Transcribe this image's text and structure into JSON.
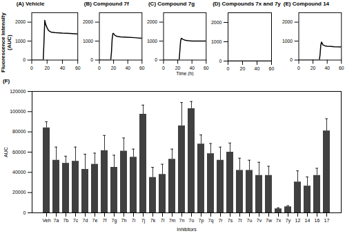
{
  "chart_data": [
    {
      "type": "line",
      "title": "(A) Vehicle",
      "ylabel": "Fluorescence Intensity (AUC)",
      "color": "#000000",
      "x": [
        0,
        15,
        16,
        17,
        18,
        20,
        22,
        25,
        30,
        40,
        50,
        60
      ],
      "values": [
        0,
        0,
        1000,
        2100,
        1900,
        1700,
        1550,
        1480,
        1450,
        1420,
        1400,
        1380
      ],
      "xlim": [
        0,
        60
      ],
      "xticks": [
        0,
        20,
        40,
        60
      ],
      "ylim": [
        0,
        2500
      ],
      "yticks": [
        0,
        1000,
        2000
      ]
    },
    {
      "type": "line",
      "title": "(B) Compound 7f",
      "color": "#000000",
      "x": [
        0,
        16,
        17,
        18,
        19,
        20,
        22,
        25,
        30,
        40,
        50,
        60
      ],
      "values": [
        0,
        0,
        400,
        1100,
        1400,
        1400,
        1300,
        1250,
        1220,
        1200,
        1180,
        1150
      ],
      "xlim": [
        0,
        60
      ],
      "xticks": [
        0,
        20,
        40,
        60
      ],
      "ylim": [
        0,
        2500
      ],
      "yticks": [
        0,
        1000,
        2000
      ]
    },
    {
      "type": "line",
      "title": "(C) Compound 7g",
      "xlabel": "Time (h)",
      "color": "#000000",
      "x": [
        0,
        22,
        23,
        24,
        25,
        27,
        30,
        35,
        40,
        50,
        60
      ],
      "values": [
        0,
        0,
        500,
        1000,
        1150,
        1100,
        1050,
        1020,
        1000,
        1000,
        1000
      ],
      "xlim": [
        0,
        60
      ],
      "xticks": [
        0,
        20,
        40,
        60
      ],
      "ylim": [
        0,
        2500
      ],
      "yticks": [
        0,
        1000,
        2000
      ]
    },
    {
      "type": "line",
      "title": "(D) Compounds 7x and 7y",
      "color": "#000000",
      "x": [
        0,
        60
      ],
      "values": [
        0,
        0
      ],
      "xlim": [
        0,
        60
      ],
      "xticks": [
        0,
        20,
        40,
        60
      ],
      "ylim": [
        0,
        2500
      ],
      "yticks": [
        0,
        1000,
        2000
      ]
    },
    {
      "type": "line",
      "title": "(E) Compound 14",
      "color": "#000000",
      "x": [
        0,
        29,
        30,
        31,
        32,
        34,
        37,
        40,
        45,
        50,
        60
      ],
      "values": [
        0,
        0,
        300,
        800,
        950,
        800,
        750,
        730,
        720,
        700,
        690
      ],
      "xlim": [
        0,
        60
      ],
      "xticks": [
        0,
        20,
        40,
        60
      ],
      "ylim": [
        0,
        2500
      ],
      "yticks": [
        0,
        1000,
        2000
      ]
    },
    {
      "type": "bar",
      "title": "(F)",
      "xlabel": "Inhibitors",
      "ylabel": "AUC",
      "color": "#404040",
      "categories": [
        "Veh",
        "7a",
        "7b",
        "7c",
        "7d",
        "7e",
        "7f",
        "7g",
        "7h",
        "7i",
        "7j",
        "7k",
        "7l",
        "7m",
        "7n",
        "7o",
        "7p",
        "7q",
        "7r",
        "7s",
        "7t",
        "7u",
        "7v",
        "7w",
        "7x",
        "7y",
        "12",
        "14",
        "16",
        "17"
      ],
      "values": [
        84000,
        52000,
        49000,
        51000,
        43000,
        48000,
        61500,
        45000,
        61000,
        55000,
        97500,
        35000,
        38000,
        53000,
        86000,
        103000,
        68000,
        58500,
        52000,
        60000,
        42000,
        42000,
        37000,
        37000,
        4000,
        6000,
        30500,
        26500,
        37000,
        81000
      ],
      "errors": [
        6000,
        13000,
        7000,
        14000,
        15000,
        11000,
        15000,
        12000,
        13000,
        8000,
        9000,
        10000,
        10000,
        10000,
        23000,
        7000,
        9000,
        10000,
        13000,
        9000,
        12000,
        10000,
        13000,
        9000,
        1000,
        1000,
        11000,
        9000,
        7000,
        12000
      ],
      "ylim": [
        0,
        120000
      ],
      "yticks": [
        0,
        20000,
        40000,
        60000,
        80000,
        100000,
        120000
      ]
    }
  ]
}
